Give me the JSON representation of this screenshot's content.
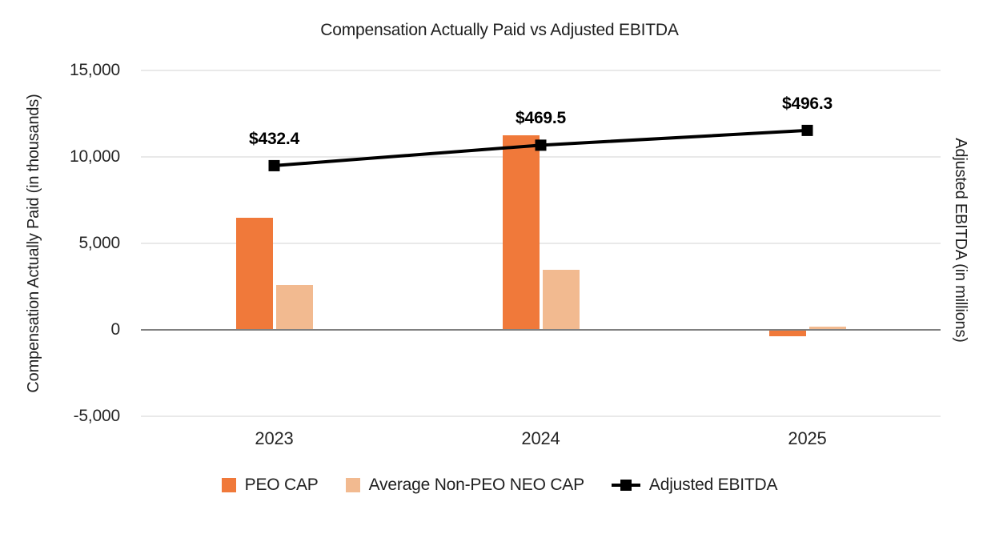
{
  "title": "Compensation Actually Paid vs Adjusted EBITDA",
  "chart_data": {
    "type": "combo-bar-line",
    "title": "Compensation Actually Paid vs Adjusted EBITDA",
    "categories": [
      "2023",
      "2024",
      "2025"
    ],
    "series": [
      {
        "name": "PEO CAP",
        "type": "bar",
        "axis": "left",
        "color": "#F0793A",
        "values": [
          6500,
          11250,
          -350
        ]
      },
      {
        "name": "Average Non-PEO NEO CAP",
        "type": "bar",
        "axis": "left",
        "color": "#F2BA90",
        "values": [
          2600,
          3450,
          200
        ]
      },
      {
        "name": "Adjusted EBITDA",
        "type": "line",
        "axis": "right",
        "color": "#000000",
        "values": [
          432.4,
          469.5,
          496.3
        ],
        "data_labels": [
          "$432.4",
          "$469.5",
          "$496.3"
        ],
        "marker": "square"
      }
    ],
    "ylabel": "Compensation Actually Paid (in thousands)",
    "y2label": "Adjusted EBITDA (in millions)",
    "ylim": [
      -5000,
      15000
    ],
    "y2lim": [
      -22,
      605
    ],
    "yticks": [
      {
        "value": 15000,
        "label": "15,000"
      },
      {
        "value": 10000,
        "label": "10,000"
      },
      {
        "value": 5000,
        "label": "5,000"
      },
      {
        "value": 0,
        "label": "0"
      },
      {
        "value": -5000,
        "label": "-5,000"
      }
    ],
    "grid": true,
    "legend_position": "bottom",
    "colors": {
      "grid_line": "#E9E9E9",
      "zero_line": "#808080",
      "text": "#1F1F1F",
      "background": "#FFFFFF"
    }
  }
}
